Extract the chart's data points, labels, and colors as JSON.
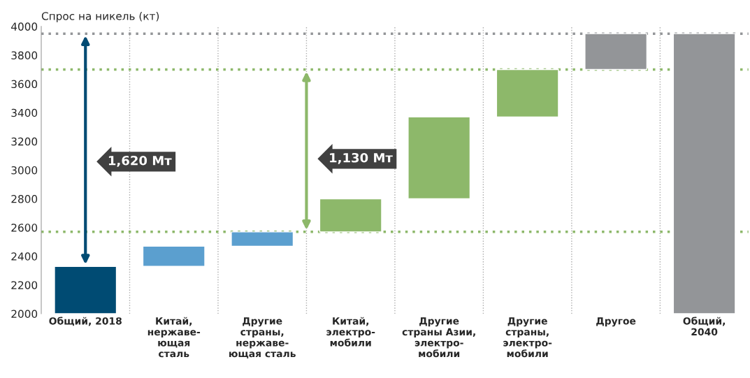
{
  "chart_data": {
    "type": "bar",
    "ylabel": "Спрос на никель (кт)",
    "categories": [
      "Общий, 2018",
      "Китай,\nнержаве-\nющая\nсталь",
      "Другие\nстраны,\nнержаве-\nющая сталь",
      "Китай,\nэлектро-\nмобили",
      "Другие\nстраны Азии,\nэлектро-\nмобили",
      "Другие\nстраны,\nэлектро-\nмобили",
      "Другое",
      "Общий,\n2040"
    ],
    "base": [
      2000,
      2330,
      2470,
      2570,
      2800,
      3370,
      3700,
      2000
    ],
    "values": [
      330,
      140,
      100,
      230,
      570,
      330,
      250,
      1950
    ],
    "colors": [
      "#004b73",
      "#5b9fcf",
      "#5b9fcf",
      "#8db86a",
      "#8db86a",
      "#8db86a",
      "#939598",
      "#939598"
    ],
    "ylim": [
      2000,
      4000
    ],
    "yticks": [
      2000,
      2200,
      2400,
      2600,
      2800,
      3000,
      3200,
      3400,
      3600,
      3800,
      4000
    ],
    "grid": "x",
    "ref_lines": [
      {
        "axis": "y",
        "value": 3950,
        "color": "#939598",
        "line_style": "dotted"
      },
      {
        "axis": "y",
        "value": 2570,
        "color": "#8db86a",
        "line_style": "dotted"
      },
      {
        "axis": "y",
        "value": 3700,
        "color": "#8db86a",
        "line_style": "dotted"
      }
    ],
    "annotations": [
      "1,620 Мт",
      "1,130 Мт"
    ]
  }
}
